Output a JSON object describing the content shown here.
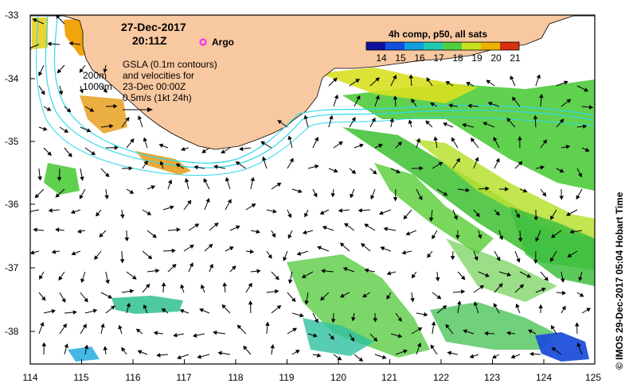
{
  "map": {
    "date": "27-Dec-2017",
    "time": "20:11Z",
    "argo_label": "Argo",
    "composite_title": "4h comp, p50, all sats",
    "colorbar_ticks": [
      "14",
      "15",
      "16",
      "17",
      "18",
      "19",
      "20",
      "21"
    ],
    "contour_labels": [
      "200m",
      "1000m"
    ],
    "gsla_lines": [
      "GSLA (0.1m contours)",
      "and velocities for",
      "23-Dec 00:00Z",
      "0.5m/s (1kt 24h)"
    ],
    "credit": "© IMOS 29-Dec-2017 05:04 Hobart Time",
    "lat_ticks": [
      "-33",
      "-34",
      "-35",
      "-36",
      "-37",
      "-38"
    ],
    "lon_ticks": [
      "114",
      "115",
      "116",
      "117",
      "118",
      "119",
      "120",
      "121",
      "122",
      "123",
      "124",
      "125"
    ]
  },
  "colors": {
    "land": "#f8c8a0",
    "contour": "#30d8e8",
    "argo": "#ff20ff",
    "sst_green": "#44c830",
    "sst_yellow": "#e0e020",
    "sst_orange": "#f0a000",
    "sst_cyan": "#20c0c0",
    "sst_blue": "#2060e0"
  }
}
